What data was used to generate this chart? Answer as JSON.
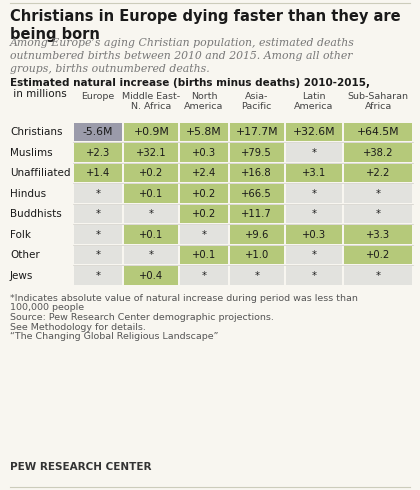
{
  "title": "Christians in Europe dying faster than they are\nbeing born",
  "subtitle": "Among Europe’s aging Christian population, estimated deaths\noutnumbered births between 2010 and 2015. Among all other\ngroups, births outnumbered deaths.",
  "table_header_bold": "Estimated natural increase (births minus deaths) 2010-2015,",
  "table_header_normal": " in millions",
  "columns": [
    "Europe",
    "Middle East-\nN. Africa",
    "North\nAmerica",
    "Asia-\nPacific",
    "Latin\nAmerica",
    "Sub-Saharan\nAfrica"
  ],
  "rows": [
    "Christians",
    "Muslims",
    "Unaffiliated",
    "Hindus",
    "Buddhists",
    "Folk",
    "Other",
    "Jews"
  ],
  "data": [
    [
      "-5.6M",
      "+0.9M",
      "+5.8M",
      "+17.7M",
      "+32.6M",
      "+64.5M"
    ],
    [
      "+2.3",
      "+32.1",
      "+0.3",
      "+79.5",
      "*",
      "+38.2"
    ],
    [
      "+1.4",
      "+0.2",
      "+2.4",
      "+16.8",
      "+3.1",
      "+2.2"
    ],
    [
      "*",
      "+0.1",
      "+0.2",
      "+66.5",
      "*",
      "*"
    ],
    [
      "*",
      "*",
      "+0.2",
      "+11.7",
      "*",
      "*"
    ],
    [
      "*",
      "+0.1",
      "*",
      "+9.6",
      "+0.3",
      "+3.3"
    ],
    [
      "*",
      "*",
      "+0.1",
      "+1.0",
      "*",
      "+0.2"
    ],
    [
      "*",
      "+0.4",
      "*",
      "*",
      "*",
      "*"
    ]
  ],
  "cell_colors": [
    [
      "#9b9baa",
      "#b5c97a",
      "#b5c97a",
      "#b5c97a",
      "#b5c97a",
      "#b5c97a"
    ],
    [
      "#b5c97a",
      "#b5c97a",
      "#b5c97a",
      "#b5c97a",
      "#e2e2de",
      "#b5c97a"
    ],
    [
      "#b5c97a",
      "#b5c97a",
      "#b5c97a",
      "#b5c97a",
      "#b5c97a",
      "#b5c97a"
    ],
    [
      "#e2e2de",
      "#b5c97a",
      "#b5c97a",
      "#b5c97a",
      "#e2e2de",
      "#e2e2de"
    ],
    [
      "#e2e2de",
      "#e2e2de",
      "#b5c97a",
      "#b5c97a",
      "#e2e2de",
      "#e2e2de"
    ],
    [
      "#e2e2de",
      "#b5c97a",
      "#e2e2de",
      "#b5c97a",
      "#b5c97a",
      "#b5c97a"
    ],
    [
      "#e2e2de",
      "#e2e2de",
      "#b5c97a",
      "#b5c97a",
      "#e2e2de",
      "#b5c97a"
    ],
    [
      "#e2e2de",
      "#b5c97a",
      "#e2e2de",
      "#e2e2de",
      "#e2e2de",
      "#e2e2de"
    ]
  ],
  "footnote_lines": [
    "*Indicates absolute value of natural increase during period was less than",
    "100,000 people",
    "Source: Pew Research Center demographic projections.",
    "See Methodology for details.",
    "“The Changing Global Religious Landscape”"
  ],
  "source_label": "PEW RESEARCH CENTER",
  "bg_color": "#f8f6f0",
  "text_color": "#1a1a1a",
  "footnote_color": "#555555"
}
